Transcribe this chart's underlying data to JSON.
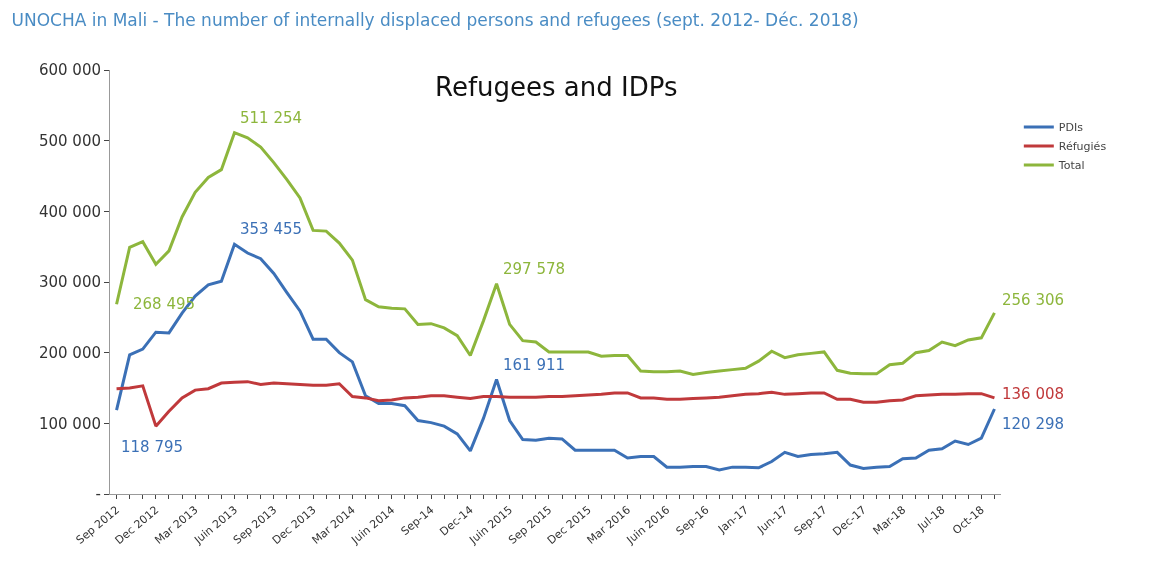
{
  "chart_data": {
    "type": "line",
    "title": "UNOCHA in Mali - The number of internally displaced persons and refugees (sept. 2012- Déc. 2018)",
    "subtitle": "Refugees and IDPs",
    "categories": [
      "Sep 2012",
      null,
      null,
      "Dec 2012",
      null,
      null,
      "Mar 2013",
      null,
      null,
      "Juin 2013",
      null,
      null,
      "Sep 2013",
      null,
      null,
      "Dec 2013",
      null,
      null,
      "Mar 2014",
      null,
      null,
      "Juin 2014",
      null,
      null,
      "Sep-14",
      null,
      null,
      "Dec-14",
      null,
      null,
      "Juin 2015",
      null,
      null,
      "Sep 2015",
      null,
      null,
      "Dec 2015",
      null,
      null,
      "Mar 2016",
      null,
      null,
      "Juin 2016",
      null,
      null,
      "Sep-16",
      null,
      null,
      "Jan-17",
      null,
      null,
      "Jun-17",
      null,
      null,
      "Sep-17",
      null,
      null,
      "Dec-17",
      null,
      null,
      "Mar-18",
      null,
      null,
      "Jul-18",
      null,
      null,
      "Oct-18",
      null
    ],
    "series": [
      {
        "name": "PDIs",
        "color": "#3b70b6",
        "values": [
          118795,
          197000,
          205000,
          229000,
          228000,
          256000,
          280000,
          296000,
          301000,
          353455,
          341000,
          333000,
          312000,
          285000,
          259000,
          219000,
          219000,
          200000,
          187000,
          139000,
          128000,
          128000,
          125000,
          104000,
          101000,
          96000,
          85000,
          61000,
          107000,
          161911,
          104000,
          77000,
          76000,
          79000,
          78000,
          62000,
          62000,
          62000,
          62000,
          51000,
          53000,
          53000,
          38000,
          38000,
          39000,
          39000,
          34000,
          38000,
          38000,
          37000,
          46000,
          59000,
          53000,
          56000,
          57000,
          59000,
          41000,
          36000,
          38000,
          39000,
          50000,
          51000,
          62000,
          64000,
          75000,
          70000,
          79000,
          120298
        ],
        "value_labels": [
          "118 795",
          null,
          null,
          null,
          null,
          null,
          null,
          null,
          null,
          "353 455",
          null,
          null,
          null,
          null,
          null,
          null,
          null,
          null,
          null,
          null,
          null,
          null,
          null,
          null,
          null,
          null,
          null,
          null,
          null,
          "161 911",
          null,
          null,
          null,
          null,
          null,
          null,
          null,
          null,
          null,
          null,
          null,
          null,
          null,
          null,
          null,
          null,
          null,
          null,
          null,
          null,
          null,
          null,
          null,
          null,
          null,
          null,
          null,
          null,
          null,
          null,
          null,
          null,
          null,
          null,
          null,
          null,
          null,
          "120 298"
        ]
      },
      {
        "name": "Réfugiés",
        "color": "#c0393b",
        "values": [
          149000,
          150000,
          153000,
          96000,
          117000,
          136000,
          147000,
          149000,
          157000,
          158000,
          159000,
          155000,
          157000,
          156000,
          155000,
          154000,
          154000,
          156000,
          138000,
          136000,
          132000,
          133000,
          136000,
          137000,
          139000,
          139000,
          137000,
          135000,
          138000,
          138000,
          137000,
          137000,
          137000,
          138000,
          138000,
          139000,
          140000,
          141000,
          143000,
          143000,
          136000,
          136000,
          134000,
          134000,
          135000,
          136000,
          137000,
          139000,
          141000,
          142000,
          144000,
          141000,
          142000,
          143000,
          143000,
          134000,
          134000,
          130000,
          130000,
          132000,
          133000,
          139000,
          140000,
          141000,
          141000,
          142000,
          142000,
          136008
        ],
        "value_labels": [
          null,
          null,
          null,
          null,
          null,
          null,
          null,
          null,
          null,
          null,
          null,
          null,
          null,
          null,
          null,
          null,
          null,
          null,
          null,
          null,
          null,
          null,
          null,
          null,
          null,
          null,
          null,
          null,
          null,
          null,
          null,
          null,
          null,
          null,
          null,
          null,
          null,
          null,
          null,
          null,
          null,
          null,
          null,
          null,
          null,
          null,
          null,
          null,
          null,
          null,
          null,
          null,
          null,
          null,
          null,
          null,
          null,
          null,
          null,
          null,
          null,
          null,
          null,
          null,
          null,
          null,
          null,
          "136 008"
        ]
      },
      {
        "name": "Total",
        "color": "#8db63c",
        "values": [
          268495,
          349000,
          357000,
          325000,
          344000,
          392000,
          427000,
          448000,
          459000,
          511254,
          504000,
          491000,
          469000,
          445000,
          419000,
          373000,
          372000,
          355000,
          331000,
          275000,
          265000,
          263000,
          262000,
          240000,
          241000,
          235000,
          224000,
          196000,
          245000,
          297578,
          240000,
          217000,
          215000,
          201000,
          201000,
          201000,
          201000,
          195000,
          196000,
          196000,
          174000,
          173000,
          173000,
          174000,
          169000,
          172000,
          174000,
          176000,
          178000,
          188000,
          202000,
          193000,
          197000,
          199000,
          201000,
          175000,
          171000,
          170000,
          170000,
          183000,
          185000,
          200000,
          203000,
          215000,
          210000,
          218000,
          221000,
          256306
        ],
        "value_labels": [
          "268 495",
          null,
          null,
          null,
          null,
          null,
          null,
          null,
          null,
          "511 254",
          null,
          null,
          null,
          null,
          null,
          null,
          null,
          null,
          null,
          null,
          null,
          null,
          null,
          null,
          null,
          null,
          null,
          null,
          null,
          "297 578",
          null,
          null,
          null,
          null,
          null,
          null,
          null,
          null,
          null,
          null,
          null,
          null,
          null,
          null,
          null,
          null,
          null,
          null,
          null,
          null,
          null,
          null,
          null,
          null,
          null,
          null,
          null,
          null,
          null,
          null,
          null,
          null,
          null,
          null,
          null,
          null,
          null,
          "256 306"
        ]
      }
    ],
    "ylim": [
      0,
      600000
    ],
    "yticks": [
      {
        "value": 0,
        "label": "-"
      },
      {
        "value": 100000,
        "label": "100 000"
      },
      {
        "value": 200000,
        "label": "200 000"
      },
      {
        "value": 300000,
        "label": "300 000"
      },
      {
        "value": 400000,
        "label": "400 000"
      },
      {
        "value": 500000,
        "label": "500 000"
      },
      {
        "value": 600000,
        "label": "600 000"
      }
    ],
    "grid": false,
    "legend": "right",
    "marker": "none",
    "line_style": "solid"
  }
}
